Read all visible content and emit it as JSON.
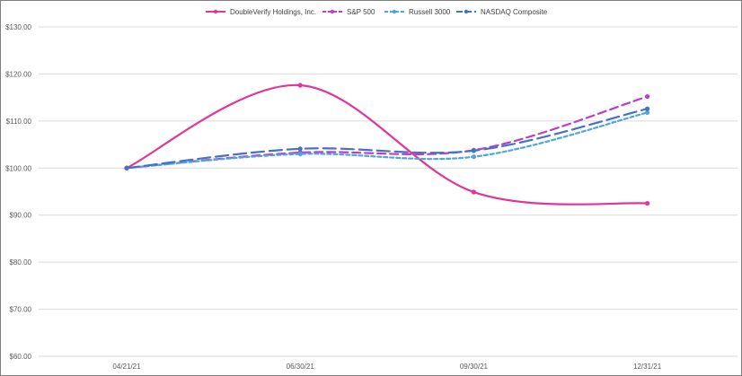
{
  "chart_data": {
    "type": "line",
    "title": "",
    "xlabel": "",
    "ylabel": "",
    "categories": [
      "04/21/21",
      "06/30/21",
      "09/30/21",
      "12/31/21"
    ],
    "ylim": [
      60,
      130
    ],
    "yticks": [
      60,
      70,
      80,
      90,
      100,
      110,
      120,
      130
    ],
    "ytick_labels": [
      "$60.00",
      "$70.00",
      "$80.00",
      "$90.00",
      "$100.00",
      "$110.00",
      "$120.00",
      "$130.00"
    ],
    "grid": "horizontal",
    "legend_position": "top-center",
    "series": [
      {
        "name": "DoubleVerify Holdings, Inc.",
        "values": [
          100.0,
          117.6,
          94.9,
          92.5
        ],
        "color": "#e0359a",
        "style": "solid",
        "curve": "smooth"
      },
      {
        "name": "S&P 500",
        "values": [
          100.0,
          103.3,
          103.8,
          115.2
        ],
        "color": "#c03cc8",
        "style": "dash",
        "curve": "smooth"
      },
      {
        "name": "Russell 3000",
        "values": [
          100.0,
          103.0,
          102.4,
          111.8
        ],
        "color": "#4ea6dc",
        "style": "short-dash",
        "curve": "smooth"
      },
      {
        "name": "NASDAQ Composite",
        "values": [
          100.0,
          104.1,
          103.7,
          112.6
        ],
        "color": "#4472c4",
        "style": "long-dash",
        "curve": "smooth"
      }
    ]
  }
}
